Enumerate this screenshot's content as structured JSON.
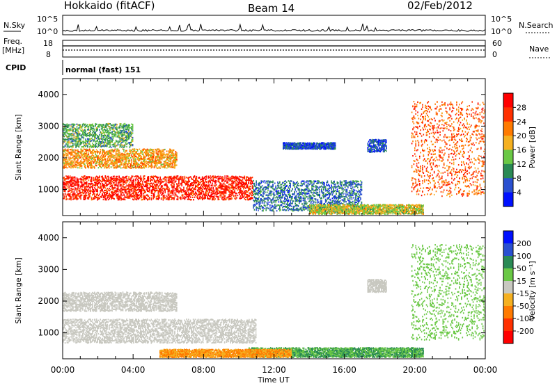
{
  "header": {
    "station": "Hokkaido (fitACF)",
    "beam": "Beam 14",
    "date": "02/Feb/2012"
  },
  "top_panels": {
    "nsky_label": "N.Sky",
    "nsearch_label": "N.Search",
    "noise_ticks": [
      "10^5",
      "10^0"
    ],
    "freq_label": "Freq.",
    "freq_unit": "[MHz]",
    "freq_ticks": [
      "18",
      "8"
    ],
    "nave_label": "Nave",
    "nave_ticks": [
      "60",
      "0"
    ],
    "cpid_label": "CPID",
    "cpid_value": "normal (fast) 151"
  },
  "chart_data": [
    {
      "type": "heatmap",
      "name": "power",
      "ylabel": "Slant Range [km]",
      "xlabel": "",
      "ylim": [
        180,
        4500
      ],
      "y_ticks": [
        "4000",
        "3000",
        "2000",
        "1000"
      ],
      "colorbar_label": "Power [dB]",
      "colorbar_ticks": [
        "28",
        "24",
        "20",
        "16",
        "12",
        "8",
        "4"
      ],
      "colorbar_colors": [
        "#0010ff",
        "#2a50d0",
        "#2a8a55",
        "#6ac845",
        "#f5b020",
        "#ff7a00",
        "#ff3000",
        "#ff0000"
      ],
      "echo_regions": [
        {
          "t": [
            0,
            10.8
          ],
          "r": [
            700,
            1450
          ],
          "level": 28
        },
        {
          "t": [
            10.8,
            17
          ],
          "r": [
            350,
            1300
          ],
          "level": 8
        },
        {
          "t": [
            0,
            6.5
          ],
          "r": [
            1700,
            2300
          ],
          "level": 20
        },
        {
          "t": [
            0,
            4
          ],
          "r": [
            2350,
            3100
          ],
          "level": 12
        },
        {
          "t": [
            14,
            20.5
          ],
          "r": [
            250,
            550
          ],
          "level": 16
        },
        {
          "t": [
            19.8,
            24
          ],
          "r": [
            800,
            3800
          ],
          "level": 24
        },
        {
          "t": [
            17.3,
            18.4
          ],
          "r": [
            2200,
            2600
          ],
          "level": 6
        },
        {
          "t": [
            12.5,
            15.5
          ],
          "r": [
            2300,
            2500
          ],
          "level": 6
        }
      ]
    },
    {
      "type": "heatmap",
      "name": "velocity",
      "ylabel": "Slant Range [km]",
      "xlabel": "Time UT",
      "ylim": [
        180,
        4500
      ],
      "y_ticks": [
        "4000",
        "3000",
        "2000",
        "1000"
      ],
      "x_ticks": [
        "00:00",
        "04:00",
        "08:00",
        "12:00",
        "16:00",
        "20:00",
        "00:00"
      ],
      "colorbar_label": "Velocity [m s⁻¹]",
      "colorbar_ticks": [
        "200",
        "100",
        "50",
        "15",
        "-15",
        "-50",
        "-100",
        "-200"
      ],
      "colorbar_colors": [
        "#0010ff",
        "#2a50d0",
        "#2a8a55",
        "#6ac845",
        "#c8c8c0",
        "#f5b020",
        "#ff7a00",
        "#ff3000",
        "#ff0000"
      ],
      "echo_regions": [
        {
          "t": [
            0,
            11
          ],
          "r": [
            700,
            1450
          ],
          "level": 0
        },
        {
          "t": [
            0,
            6.5
          ],
          "r": [
            1700,
            2300
          ],
          "level": 0
        },
        {
          "t": [
            10.5,
            20.5
          ],
          "r": [
            250,
            550
          ],
          "level": 50
        },
        {
          "t": [
            19.8,
            24
          ],
          "r": [
            800,
            3800
          ],
          "level": 30
        },
        {
          "t": [
            17.3,
            18.4
          ],
          "r": [
            2300,
            2700
          ],
          "level": 0
        },
        {
          "t": [
            5.5,
            13
          ],
          "r": [
            250,
            500
          ],
          "level": -50
        }
      ]
    }
  ]
}
